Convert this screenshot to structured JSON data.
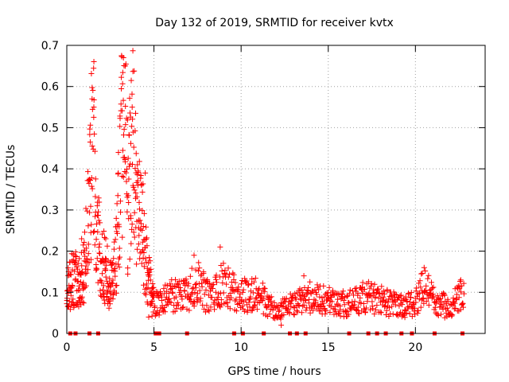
{
  "chart_data": {
    "type": "scatter",
    "title": "Day 132 of 2019, SRMTID for receiver kvtx",
    "xlabel": "GPS time / hours",
    "ylabel": "SRMTID / TECUs",
    "xlim": [
      0,
      24
    ],
    "ylim": [
      0,
      0.7
    ],
    "xticks": [
      0,
      5,
      10,
      15,
      20
    ],
    "xtick_labels": [
      "0",
      "5",
      "10",
      "15",
      "20"
    ],
    "yticks": [
      0,
      0.1,
      0.2,
      0.3,
      0.4,
      0.5,
      0.6,
      0.7
    ],
    "ytick_labels": [
      "0",
      "0.1",
      "0.2",
      "0.3",
      "0.4",
      "0.5",
      "0.6",
      "0.7"
    ],
    "grid": true,
    "marker": "+",
    "color": "#ff0000",
    "series": [
      {
        "name": "SRMTID",
        "envelope": [
          {
            "x": 0.0,
            "y": 0.09
          },
          {
            "x": 0.3,
            "y": 0.14
          },
          {
            "x": 0.7,
            "y": 0.12
          },
          {
            "x": 1.0,
            "y": 0.15
          },
          {
            "x": 1.3,
            "y": 0.3
          },
          {
            "x": 1.5,
            "y": 0.52
          },
          {
            "x": 1.7,
            "y": 0.25
          },
          {
            "x": 2.0,
            "y": 0.18
          },
          {
            "x": 2.5,
            "y": 0.12
          },
          {
            "x": 2.8,
            "y": 0.17
          },
          {
            "x": 3.1,
            "y": 0.42
          },
          {
            "x": 3.3,
            "y": 0.63
          },
          {
            "x": 3.5,
            "y": 0.3
          },
          {
            "x": 3.8,
            "y": 0.5
          },
          {
            "x": 4.0,
            "y": 0.3
          },
          {
            "x": 4.3,
            "y": 0.27
          },
          {
            "x": 4.6,
            "y": 0.15
          },
          {
            "x": 5.0,
            "y": 0.07
          },
          {
            "x": 6.0,
            "y": 0.09
          },
          {
            "x": 7.0,
            "y": 0.1
          },
          {
            "x": 7.5,
            "y": 0.13
          },
          {
            "x": 8.0,
            "y": 0.09
          },
          {
            "x": 9.0,
            "y": 0.12
          },
          {
            "x": 10.0,
            "y": 0.09
          },
          {
            "x": 11.0,
            "y": 0.1
          },
          {
            "x": 12.0,
            "y": 0.05
          },
          {
            "x": 13.0,
            "y": 0.07
          },
          {
            "x": 14.0,
            "y": 0.09
          },
          {
            "x": 15.0,
            "y": 0.08
          },
          {
            "x": 16.0,
            "y": 0.07
          },
          {
            "x": 17.0,
            "y": 0.09
          },
          {
            "x": 18.0,
            "y": 0.08
          },
          {
            "x": 19.0,
            "y": 0.07
          },
          {
            "x": 20.0,
            "y": 0.07
          },
          {
            "x": 20.5,
            "y": 0.13
          },
          {
            "x": 21.0,
            "y": 0.08
          },
          {
            "x": 22.0,
            "y": 0.06
          },
          {
            "x": 22.5,
            "y": 0.1
          },
          {
            "x": 22.8,
            "y": 0.09
          }
        ],
        "spikes": [
          {
            "x": 0.85,
            "y": 0.23
          },
          {
            "x": 1.45,
            "y": 0.57
          },
          {
            "x": 1.55,
            "y": 0.55
          },
          {
            "x": 3.25,
            "y": 0.67
          },
          {
            "x": 3.35,
            "y": 0.65
          },
          {
            "x": 3.75,
            "y": 0.55
          },
          {
            "x": 4.05,
            "y": 0.41
          },
          {
            "x": 4.5,
            "y": 0.39
          },
          {
            "x": 4.7,
            "y": 0.04
          },
          {
            "x": 7.3,
            "y": 0.19
          },
          {
            "x": 8.8,
            "y": 0.21
          },
          {
            "x": 12.3,
            "y": 0.02
          },
          {
            "x": 13.6,
            "y": 0.14
          },
          {
            "x": 20.5,
            "y": 0.16
          },
          {
            "x": 22.6,
            "y": 0.13
          }
        ],
        "zero_markers": [
          0.2,
          0.5,
          1.3,
          1.8,
          5.1,
          5.3,
          6.9,
          9.6,
          10.1,
          11.3,
          12.8,
          13.2,
          13.7,
          16.2,
          17.3,
          17.8,
          18.3,
          19.2,
          19.8,
          21.1,
          22.7
        ]
      }
    ]
  }
}
